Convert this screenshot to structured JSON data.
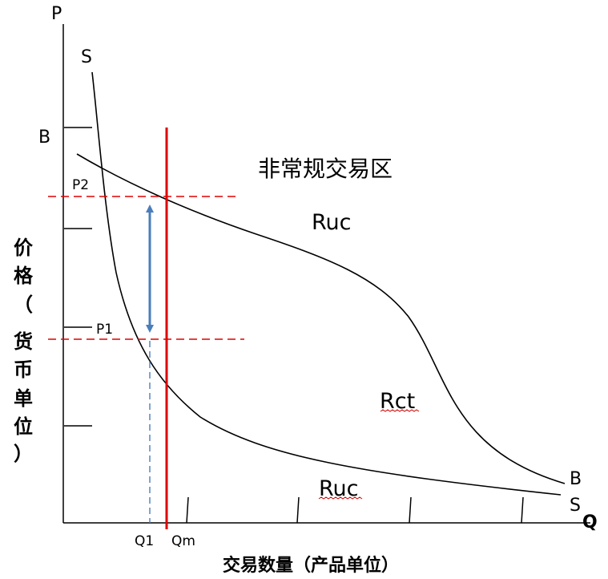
{
  "diagram": {
    "axis": {
      "y_axis_letter": "P",
      "x_axis_letter": "Q",
      "y_title_chars": [
        "价",
        "格",
        "（",
        "货",
        "币",
        "单",
        "位",
        "）"
      ],
      "x_title": "交易数量（产品单位）"
    },
    "price_labels": {
      "p2": "P2",
      "p1": "P1"
    },
    "quantity_labels": {
      "q1": "Q1",
      "qm": "Qm"
    },
    "curves": {
      "supply_start": "S",
      "supply_end": "S",
      "demand_start": "B",
      "demand_end": "B"
    },
    "regions": {
      "title": "非常规交易区",
      "upper": "Ruc",
      "middle": "Rct",
      "lower": "Ruc"
    },
    "colors": {
      "curve": "#000000",
      "limit_line": "#e00000",
      "dashed_price": "#e00000",
      "arrow": "#4a7ebb",
      "q1_dash": "#4a7ebb"
    }
  }
}
